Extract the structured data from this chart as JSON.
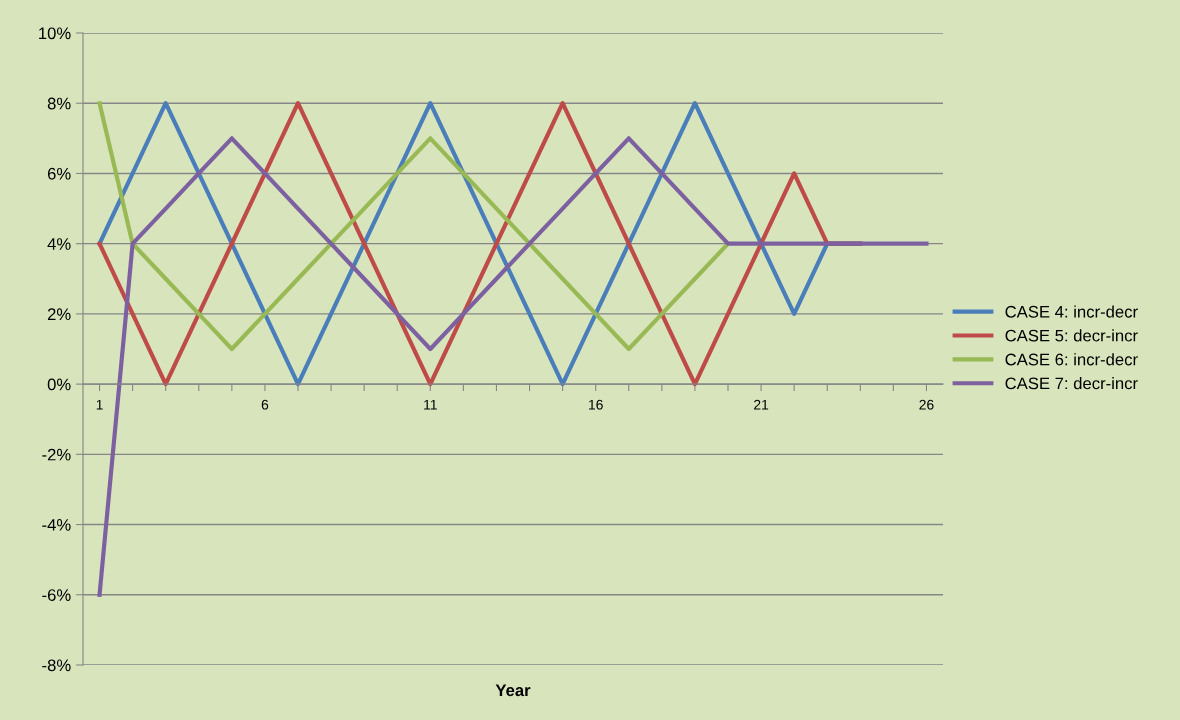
{
  "chart_data": {
    "type": "line",
    "xlabel": "Year",
    "categories": [
      "1",
      null,
      null,
      null,
      null,
      "6",
      null,
      null,
      null,
      null,
      "11",
      null,
      null,
      null,
      null,
      "16",
      null,
      null,
      null,
      null,
      "21",
      null,
      null,
      null,
      null,
      "26"
    ],
    "series": [
      {
        "name": "CASE 4: incr-decr",
        "color": "#4a7ebb",
        "values": [
          4,
          6,
          8,
          6,
          4,
          2,
          0,
          2,
          4,
          6,
          8,
          6,
          4,
          2,
          0,
          2,
          4,
          6,
          8,
          6,
          4,
          2,
          4,
          4,
          null,
          null
        ]
      },
      {
        "name": "CASE 5: decr-incr",
        "color": "#be4b48",
        "values": [
          4,
          2,
          0,
          2,
          4,
          6,
          8,
          6,
          4,
          2,
          0,
          2,
          4,
          6,
          8,
          6,
          4,
          2,
          0,
          2,
          4,
          6,
          4,
          4,
          null,
          null
        ]
      },
      {
        "name": "CASE 6: incr-decr",
        "color": "#98b954",
        "values": [
          8,
          4,
          3,
          2,
          1,
          2,
          3,
          4,
          5,
          6,
          7,
          6,
          5,
          4,
          3,
          2,
          1,
          2,
          3,
          4,
          null,
          null,
          null,
          null,
          null,
          null
        ]
      },
      {
        "name": "CASE 7: decr-incr",
        "color": "#7d60a0",
        "values": [
          -6,
          4,
          5,
          6,
          7,
          6,
          5,
          4,
          3,
          2,
          1,
          2,
          3,
          4,
          5,
          6,
          7,
          6,
          5,
          4,
          4,
          4,
          4,
          4,
          4,
          4
        ]
      }
    ],
    "ylim": [
      -8,
      10
    ],
    "yticks": [
      {
        "value": -8,
        "label": "-8%"
      },
      {
        "value": -6,
        "label": "-6%"
      },
      {
        "value": -4,
        "label": "-4%"
      },
      {
        "value": -2,
        "label": "-2%"
      },
      {
        "value": 0,
        "label": "0%"
      },
      {
        "value": 2,
        "label": "2%"
      },
      {
        "value": 4,
        "label": "4%"
      },
      {
        "value": 6,
        "label": "6%"
      },
      {
        "value": 8,
        "label": "8%"
      },
      {
        "value": 10,
        "label": "10%"
      }
    ],
    "grid": "y",
    "legend": "right",
    "marker": "none",
    "line_style": "solid"
  }
}
